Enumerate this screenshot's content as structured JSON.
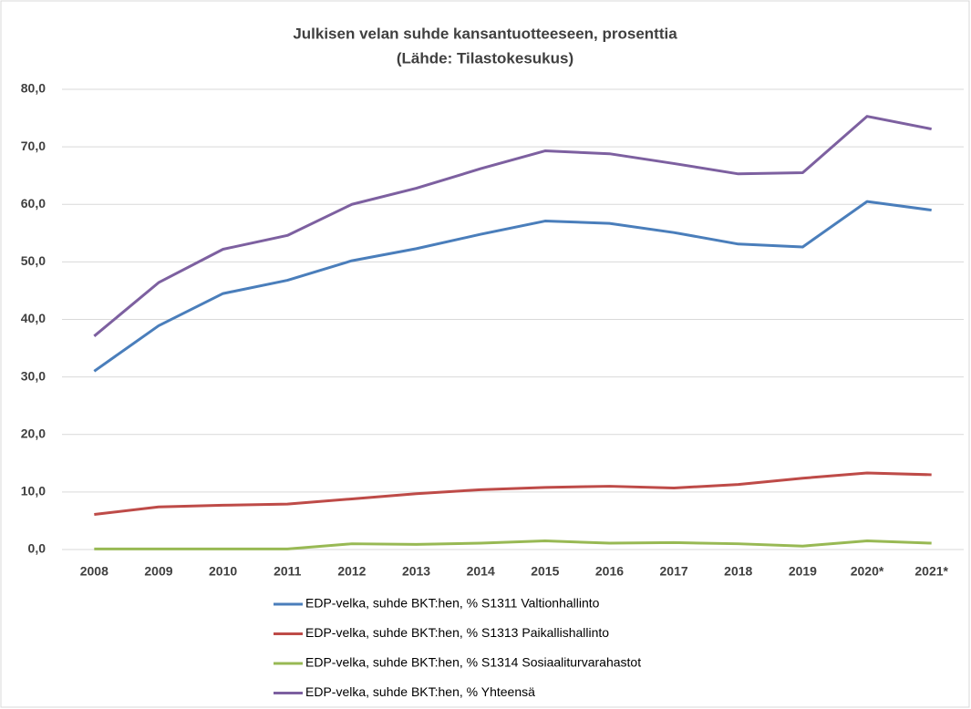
{
  "chart_data": {
    "type": "line",
    "title": "Julkisen velan suhde kansantuotteeseen, prosenttia",
    "subtitle": "(Lähde: Tilastokesukus)",
    "categories": [
      "2008",
      "2009",
      "2010",
      "2011",
      "2012",
      "2013",
      "2014",
      "2015",
      "2016",
      "2017",
      "2018",
      "2019",
      "2020*",
      "2021*"
    ],
    "series": [
      {
        "name": "EDP-velka, suhde BKT:hen, % S1311 Valtionhallinto",
        "color": "#4a7ebb",
        "values": [
          31.0,
          38.9,
          44.5,
          46.8,
          50.2,
          52.3,
          54.8,
          57.1,
          56.7,
          55.1,
          53.1,
          52.6,
          60.5,
          59.0
        ]
      },
      {
        "name": "EDP-velka, suhde BKT:hen, % S1313 Paikallishallinto",
        "color": "#be4b48",
        "values": [
          6.1,
          7.4,
          7.7,
          7.9,
          8.8,
          9.7,
          10.4,
          10.8,
          11.0,
          10.7,
          11.3,
          12.4,
          13.3,
          13.0
        ]
      },
      {
        "name": "EDP-velka, suhde BKT:hen, % S1314 Sosiaaliturvarahastot",
        "color": "#98b954",
        "values": [
          0.1,
          0.1,
          0.1,
          0.1,
          1.0,
          0.9,
          1.1,
          1.5,
          1.1,
          1.2,
          1.0,
          0.6,
          1.5,
          1.1
        ]
      },
      {
        "name": "EDP-velka, suhde BKT:hen, % Yhteensä",
        "color": "#7d60a0",
        "values": [
          37.1,
          46.4,
          52.2,
          54.6,
          60.0,
          62.8,
          66.2,
          69.3,
          68.8,
          67.1,
          65.3,
          65.5,
          75.3,
          73.1
        ]
      }
    ],
    "ylim": [
      0,
      80
    ],
    "yticks": [
      {
        "value": 0,
        "label": "0,0"
      },
      {
        "value": 10,
        "label": "10,0"
      },
      {
        "value": 20,
        "label": "20,0"
      },
      {
        "value": 30,
        "label": "30,0"
      },
      {
        "value": 40,
        "label": "40,0"
      },
      {
        "value": 50,
        "label": "50,0"
      },
      {
        "value": 60,
        "label": "60,0"
      },
      {
        "value": 70,
        "label": "70,0"
      },
      {
        "value": 80,
        "label": "80,0"
      }
    ],
    "grid": true,
    "legend": "bottom"
  }
}
